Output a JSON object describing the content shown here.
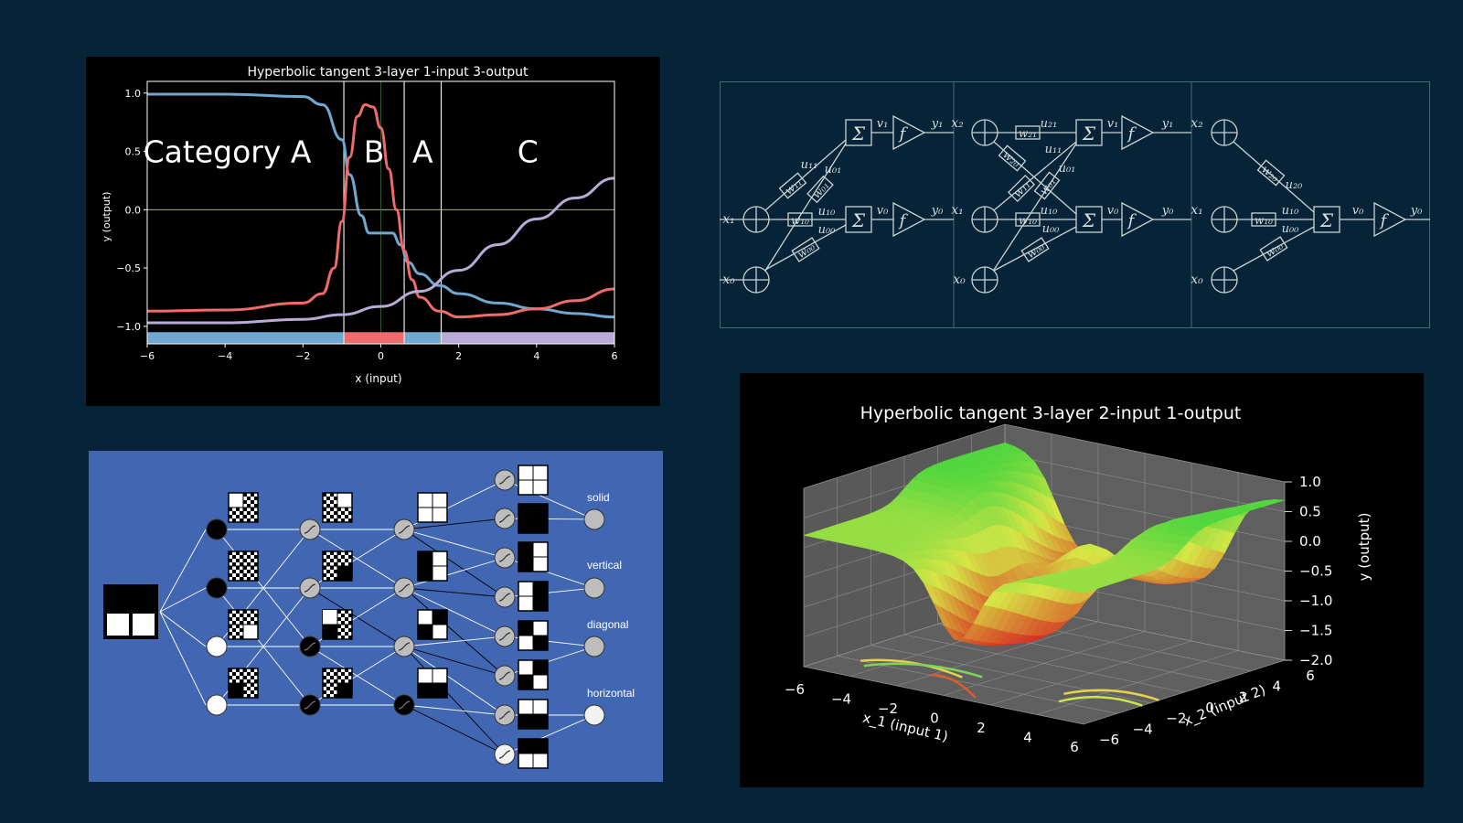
{
  "background_color": "#062338",
  "chart_data": [
    {
      "type": "line",
      "title": "Hyperbolic tangent 3-layer 1-input 3-output",
      "xlabel": "x (input)",
      "ylabel": "y (output)",
      "xlim": [
        -6,
        6
      ],
      "ylim": [
        -1.15,
        1.1
      ],
      "xticks": [
        "−6",
        "−4",
        "−2",
        "0",
        "2",
        "4",
        "6"
      ],
      "yticks": [
        "1.0",
        "0.5",
        "0.0",
        "−0.5",
        "−1.0"
      ],
      "xtick_values": [
        -6,
        -4,
        -2,
        0,
        2,
        4,
        6
      ],
      "ytick_values": [
        1.0,
        0.5,
        0.0,
        -0.5,
        -1.0
      ],
      "series": [
        {
          "color": "#6fa8d0",
          "x": [
            -6,
            -4,
            -2,
            -1.5,
            -1,
            -0.8,
            -0.5,
            -0.3,
            0,
            0.3,
            0.5,
            0.7,
            1,
            1.5,
            2,
            3,
            4,
            5,
            6
          ],
          "y": [
            0.99,
            0.99,
            0.97,
            0.9,
            0.6,
            0.3,
            -0.05,
            -0.2,
            -0.2,
            -0.2,
            -0.3,
            -0.45,
            -0.55,
            -0.65,
            -0.72,
            -0.8,
            -0.85,
            -0.89,
            -0.92
          ]
        },
        {
          "color": "#f26b6b",
          "x": [
            -6,
            -4,
            -2,
            -1.5,
            -1.2,
            -1,
            -0.8,
            -0.6,
            -0.4,
            -0.2,
            0,
            0.2,
            0.4,
            0.6,
            0.8,
            1,
            1.5,
            2,
            3,
            4,
            5,
            6
          ],
          "y": [
            -0.87,
            -0.86,
            -0.8,
            -0.72,
            -0.5,
            -0.1,
            0.45,
            0.8,
            0.9,
            0.88,
            0.7,
            0.35,
            0.0,
            -0.35,
            -0.6,
            -0.75,
            -0.87,
            -0.92,
            -0.9,
            -0.85,
            -0.78,
            -0.68
          ]
        },
        {
          "color": "#b8abd8",
          "x": [
            -6,
            -4,
            -2,
            -1,
            0,
            1,
            2,
            3,
            4,
            5,
            6
          ],
          "y": [
            -0.97,
            -0.97,
            -0.94,
            -0.9,
            -0.83,
            -0.7,
            -0.52,
            -0.3,
            -0.08,
            0.1,
            0.27
          ]
        }
      ],
      "regions": [
        {
          "label": "Category A",
          "x0": -6,
          "x1": -0.95,
          "color": "#6fa8d0"
        },
        {
          "label": "B",
          "x0": -0.95,
          "x1": 0.6,
          "color": "#f26b6b"
        },
        {
          "label": "A",
          "x0": 0.6,
          "x1": 1.55,
          "color": "#6fa8d0"
        },
        {
          "label": "C",
          "x0": 1.55,
          "x1": 6,
          "color": "#b8abd8"
        }
      ],
      "region_label_y": 0.5
    },
    {
      "type": "surface3d",
      "title": "Hyperbolic tangent 3-layer 2-input 1-output",
      "xlabel": "x_1 (input 1)",
      "ylabel": "x_2 (input 2)",
      "zlabel": "y (output)",
      "xlim": [
        -6,
        6
      ],
      "ylim": [
        -6,
        6
      ],
      "zlim": [
        -2.0,
        1.0
      ],
      "xticks": [
        "−6",
        "−4",
        "−2",
        "0",
        "2",
        "4",
        "6"
      ],
      "yticks": [
        "−6",
        "−4",
        "−2",
        "0",
        "2",
        "4",
        "6"
      ],
      "zticks": [
        "1.0",
        "0.5",
        "0.0",
        "−0.5",
        "−1.0",
        "−1.5",
        "−2.0"
      ],
      "zmin_color": "#d41a1a",
      "zmax_color": "#2cbf4e"
    }
  ],
  "diagram": {
    "nodes": {
      "x1": "x₁",
      "x0": "x₀",
      "x2": "x₂",
      "sum": "Σ",
      "f": "f",
      "v1": "v₁",
      "v0": "v₀",
      "y1": "y₁",
      "y0": "y₀",
      "w11": "w₁₁",
      "w01": "w₀₁",
      "w10": "w₁₀",
      "w00": "w₀₀",
      "u11": "u₁₁",
      "u01": "u₀₁",
      "u10": "u₁₀",
      "u00": "u₀₀",
      "w21": "w₂₁",
      "w20": "w₂₀",
      "u21": "u₂₁",
      "u20": "u₂₀"
    }
  },
  "classifier": {
    "labels": [
      "solid",
      "vertical",
      "diagonal",
      "horizontal"
    ]
  }
}
